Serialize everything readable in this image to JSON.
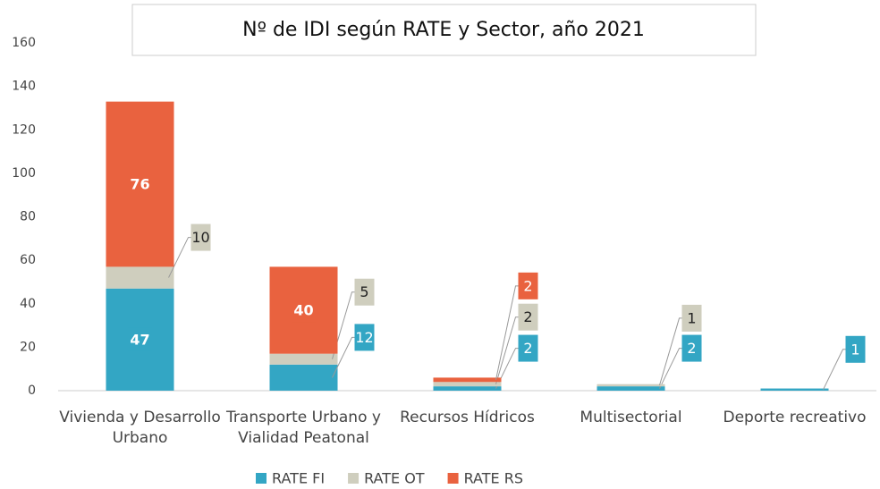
{
  "chart_data": {
    "type": "bar",
    "stacked": true,
    "title": "Nº de IDI según RATE y Sector, año 2021",
    "categories": [
      "Vivienda y Desarrollo Urbano",
      "Transporte Urbano y Vialidad Peatonal",
      "Recursos Hídricos",
      "Multisectorial",
      "Deporte recreativo"
    ],
    "series": [
      {
        "name": "RATE FI",
        "color": "#33a6c4",
        "values": [
          47,
          12,
          2,
          2,
          1
        ]
      },
      {
        "name": "RATE OT",
        "color": "#cfcebe",
        "values": [
          10,
          5,
          2,
          1,
          null
        ]
      },
      {
        "name": "RATE RS",
        "color": "#e9623f",
        "values": [
          76,
          40,
          2,
          null,
          null
        ]
      }
    ],
    "ylim": [
      0,
      160
    ],
    "yticks": [
      0,
      20,
      40,
      60,
      80,
      100,
      120,
      140,
      160
    ],
    "grid": false,
    "legend": "bottom"
  }
}
